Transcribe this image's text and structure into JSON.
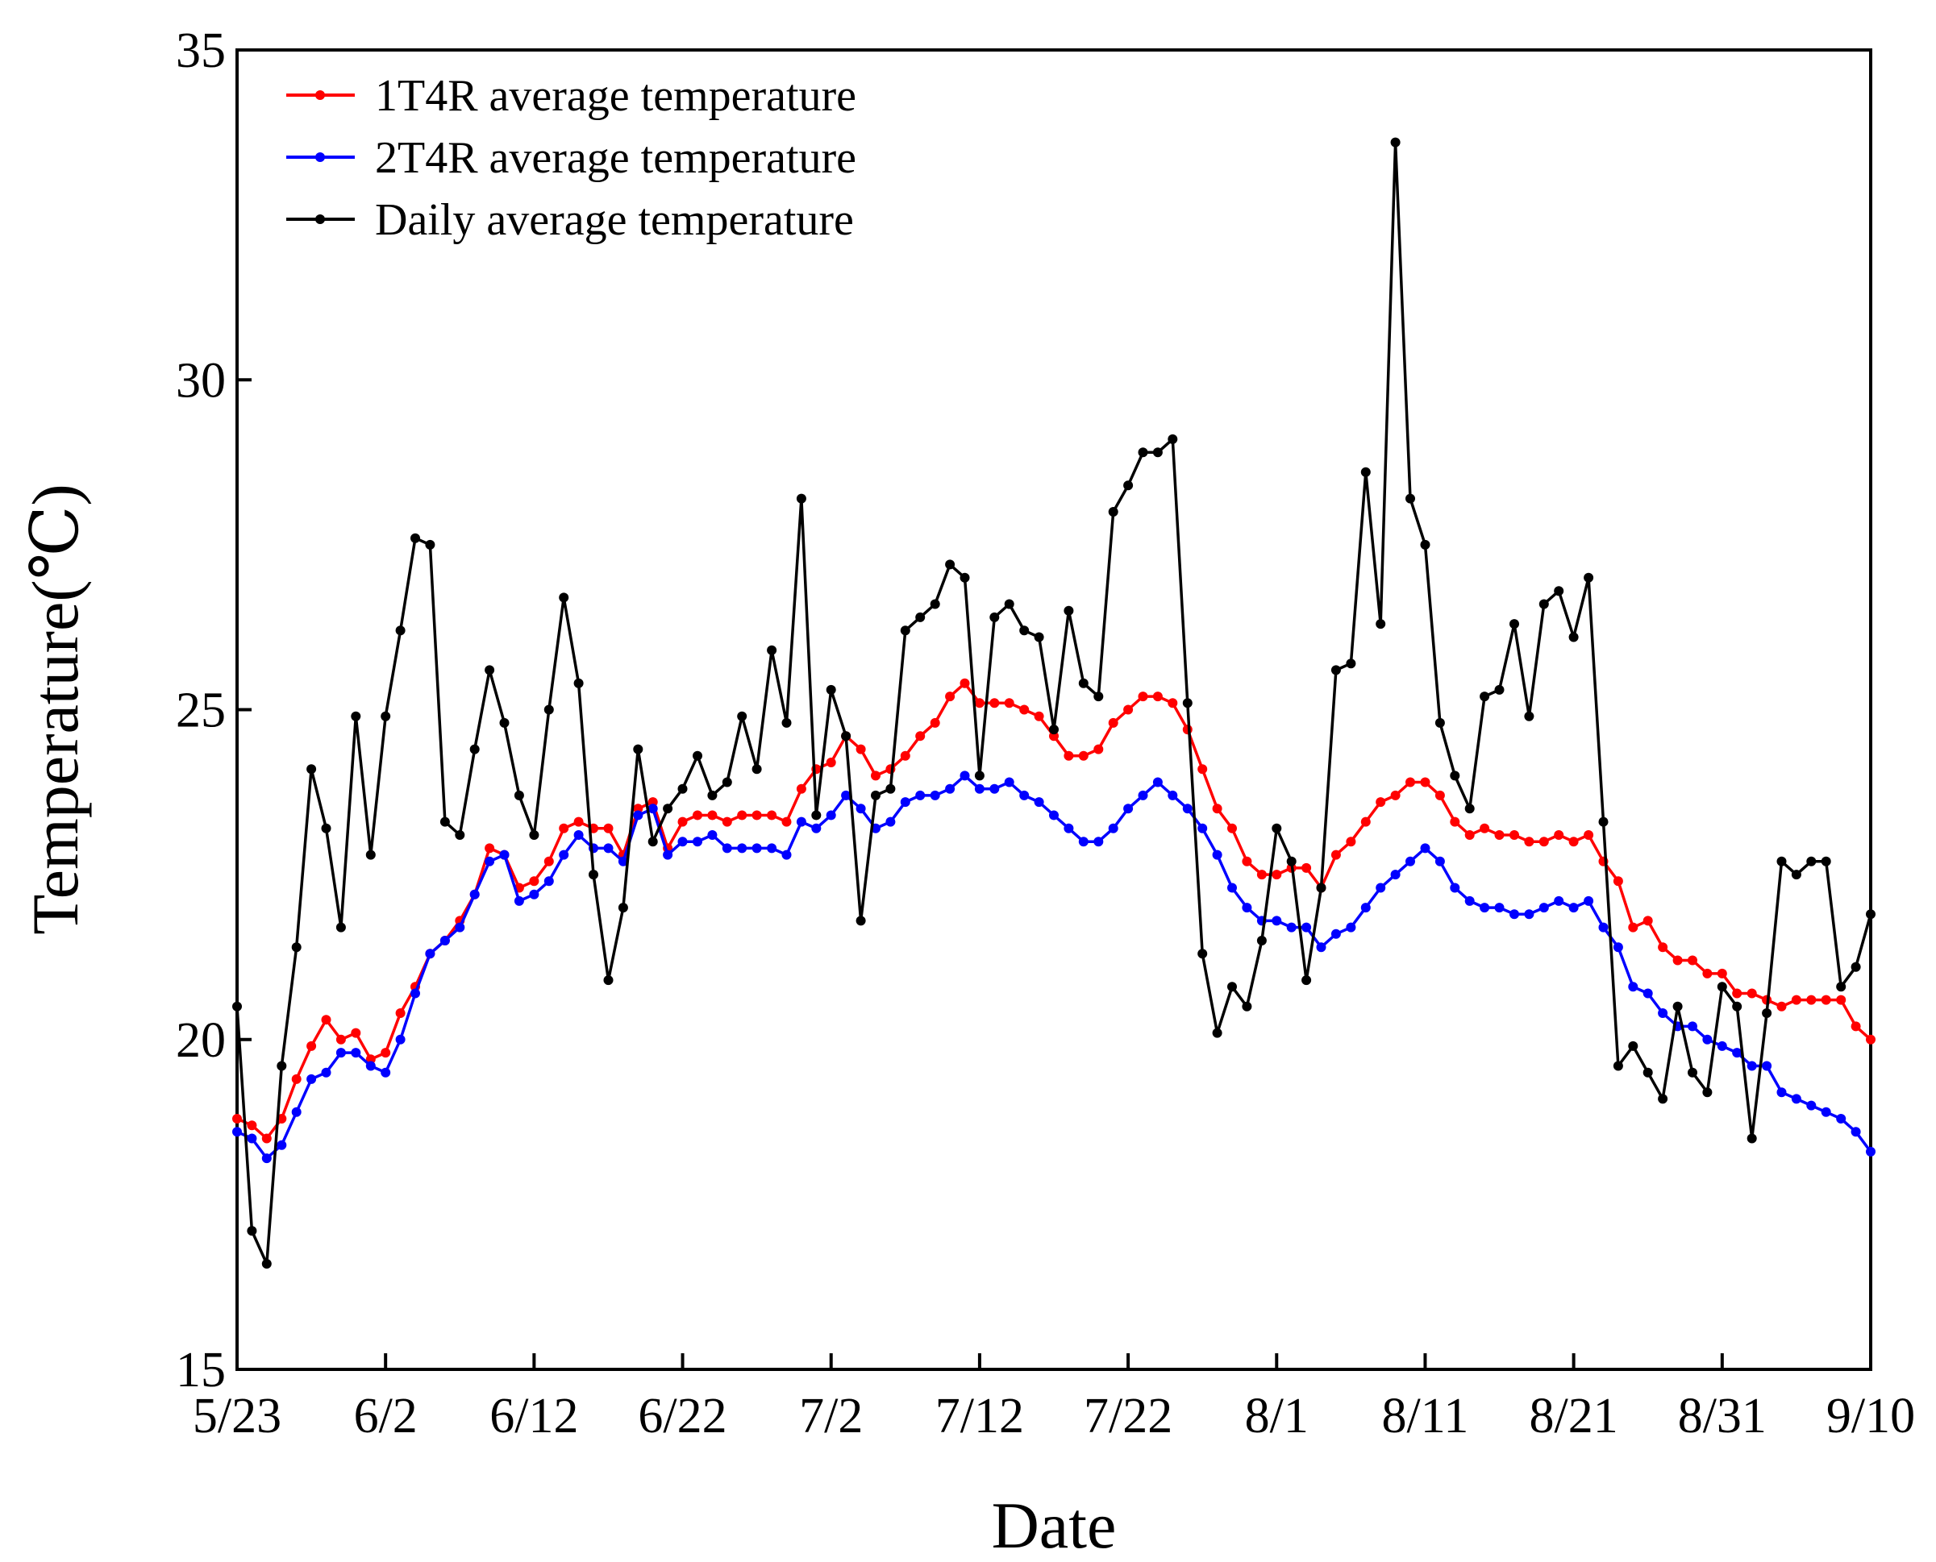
{
  "chart_data": {
    "type": "line",
    "title": "",
    "xlabel": "Date",
    "ylabel": "Temperature(℃)",
    "ylim": [
      15,
      35
    ],
    "yticks": [
      15,
      20,
      25,
      30,
      35
    ],
    "xlim": [
      0,
      110
    ],
    "xticks": [
      {
        "pos": 0,
        "label": "5/23"
      },
      {
        "pos": 10,
        "label": "6/2"
      },
      {
        "pos": 20,
        "label": "6/12"
      },
      {
        "pos": 30,
        "label": "6/22"
      },
      {
        "pos": 40,
        "label": "7/2"
      },
      {
        "pos": 50,
        "label": "7/12"
      },
      {
        "pos": 60,
        "label": "7/22"
      },
      {
        "pos": 70,
        "label": "8/1"
      },
      {
        "pos": 80,
        "label": "8/11"
      },
      {
        "pos": 90,
        "label": "8/21"
      },
      {
        "pos": 100,
        "label": "8/31"
      },
      {
        "pos": 110,
        "label": "9/10"
      }
    ],
    "grid": false,
    "legend_position": "top-left",
    "x_description": "day index from 5/23 (0) to 9/10 (110)",
    "series": [
      {
        "name": "1T4R average temperature",
        "color": "#ff0000",
        "values": [
          18.8,
          18.7,
          18.5,
          18.8,
          19.4,
          19.9,
          20.3,
          20.0,
          20.1,
          19.7,
          19.8,
          20.4,
          20.8,
          21.3,
          21.5,
          21.8,
          22.2,
          22.9,
          22.8,
          22.3,
          22.4,
          22.7,
          23.2,
          23.3,
          23.2,
          23.2,
          22.8,
          23.5,
          23.6,
          22.9,
          23.3,
          23.4,
          23.4,
          23.3,
          23.4,
          23.4,
          23.4,
          23.3,
          23.8,
          24.1,
          24.2,
          24.6,
          24.4,
          24.0,
          24.1,
          24.3,
          24.6,
          24.8,
          25.2,
          25.4,
          25.1,
          25.1,
          25.1,
          25.0,
          24.9,
          24.6,
          24.3,
          24.3,
          24.4,
          24.8,
          25.0,
          25.2,
          25.2,
          25.1,
          24.7,
          24.1,
          23.5,
          23.2,
          22.7,
          22.5,
          22.5,
          22.6,
          22.6,
          22.3,
          22.8,
          23.0,
          23.3,
          23.6,
          23.7,
          23.9,
          23.9,
          23.7,
          23.3,
          23.1,
          23.2,
          23.1,
          23.1,
          23.0,
          23.0,
          23.1,
          23.0,
          23.1,
          22.7,
          22.4,
          21.7,
          21.8,
          21.4,
          21.2,
          21.2,
          21.0,
          21.0,
          20.7,
          20.7,
          20.6,
          20.5,
          20.6,
          20.6,
          20.6,
          20.6,
          20.2,
          20.0
        ]
      },
      {
        "name": "2T4R average temperature",
        "color": "#0000ff",
        "values": [
          18.6,
          18.5,
          18.2,
          18.4,
          18.9,
          19.4,
          19.5,
          19.8,
          19.8,
          19.6,
          19.5,
          20.0,
          20.7,
          21.3,
          21.5,
          21.7,
          22.2,
          22.7,
          22.8,
          22.1,
          22.2,
          22.4,
          22.8,
          23.1,
          22.9,
          22.9,
          22.7,
          23.4,
          23.5,
          22.8,
          23.0,
          23.0,
          23.1,
          22.9,
          22.9,
          22.9,
          22.9,
          22.8,
          23.3,
          23.2,
          23.4,
          23.7,
          23.5,
          23.2,
          23.3,
          23.6,
          23.7,
          23.7,
          23.8,
          24.0,
          23.8,
          23.8,
          23.9,
          23.7,
          23.6,
          23.4,
          23.2,
          23.0,
          23.0,
          23.2,
          23.5,
          23.7,
          23.9,
          23.7,
          23.5,
          23.2,
          22.8,
          22.3,
          22.0,
          21.8,
          21.8,
          21.7,
          21.7,
          21.4,
          21.6,
          21.7,
          22.0,
          22.3,
          22.5,
          22.7,
          22.9,
          22.7,
          22.3,
          22.1,
          22.0,
          22.0,
          21.9,
          21.9,
          22.0,
          22.1,
          22.0,
          22.1,
          21.7,
          21.4,
          20.8,
          20.7,
          20.4,
          20.2,
          20.2,
          20.0,
          19.9,
          19.8,
          19.6,
          19.6,
          19.2,
          19.1,
          19.0,
          18.9,
          18.8,
          18.6,
          18.3
        ]
      },
      {
        "name": "Daily average temperature",
        "color": "#000000",
        "values": [
          20.5,
          17.1,
          16.6,
          19.6,
          21.4,
          24.1,
          23.2,
          21.7,
          24.9,
          22.8,
          24.9,
          26.2,
          27.6,
          27.5,
          23.3,
          23.1,
          24.4,
          25.6,
          24.8,
          23.7,
          23.1,
          25.0,
          26.7,
          25.4,
          22.5,
          20.9,
          22.0,
          24.4,
          23.0,
          23.5,
          23.8,
          24.3,
          23.7,
          23.9,
          24.9,
          24.1,
          25.9,
          24.8,
          28.2,
          23.4,
          25.3,
          24.6,
          21.8,
          23.7,
          23.8,
          26.2,
          26.4,
          26.6,
          27.2,
          27.0,
          24.0,
          26.4,
          26.6,
          26.2,
          26.1,
          24.7,
          26.5,
          25.4,
          25.2,
          28.0,
          28.4,
          28.9,
          28.9,
          29.1,
          25.1,
          21.3,
          20.1,
          20.8,
          20.5,
          21.5,
          23.2,
          22.7,
          20.9,
          22.3,
          25.6,
          25.7,
          28.6,
          26.3,
          33.6,
          28.2,
          27.5,
          24.8,
          24.0,
          23.5,
          25.2,
          25.3,
          26.3,
          24.9,
          26.6,
          26.8,
          26.1,
          27.0,
          23.3,
          19.6,
          19.9,
          19.5,
          19.1,
          20.5,
          19.5,
          19.2,
          20.8,
          20.5,
          18.5,
          20.4,
          22.7,
          22.5,
          22.7,
          22.7,
          20.8,
          21.1,
          21.9
        ]
      }
    ]
  }
}
